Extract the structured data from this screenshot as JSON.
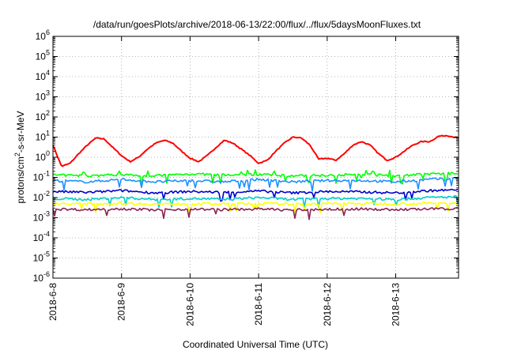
{
  "chart_data": {
    "type": "line",
    "title": "/data/run/goesPlots/archive/2018-06-13/22:00/flux/../flux/5daysMoonFluxes.txt",
    "xlabel": "Coordinated Universal Time (UTC)",
    "ylabel": "protons/cm²-s-sr-MeV",
    "y_scale": "log",
    "ylim": [
      1e-06,
      1000000.0
    ],
    "y_ticks": [
      {
        "value": 1e-06,
        "base": "10",
        "exp": "-6"
      },
      {
        "value": 1e-05,
        "base": "10",
        "exp": "-5"
      },
      {
        "value": 0.0001,
        "base": "10",
        "exp": "-4"
      },
      {
        "value": 0.001,
        "base": "10",
        "exp": "-3"
      },
      {
        "value": 0.01,
        "base": "10",
        "exp": "-2"
      },
      {
        "value": 0.1,
        "base": "10",
        "exp": "-1"
      },
      {
        "value": 1,
        "base": "10",
        "exp": "0"
      },
      {
        "value": 10.0,
        "base": "10",
        "exp": "1"
      },
      {
        "value": 100.0,
        "base": "10",
        "exp": "2"
      },
      {
        "value": 1000.0,
        "base": "10",
        "exp": "3"
      },
      {
        "value": 10000.0,
        "base": "10",
        "exp": "4"
      },
      {
        "value": 100000.0,
        "base": "10",
        "exp": "5"
      },
      {
        "value": 1000000.0,
        "base": "10",
        "exp": "6"
      }
    ],
    "xlim": [
      "2018-06-08T00:00",
      "2018-06-13T22:00"
    ],
    "x_ticks": [
      "2018-6-8",
      "2018-6-9",
      "2018-6-10",
      "2018-6-11",
      "2018-6-12",
      "2018-6-13"
    ],
    "x_tick_dates": [
      "2018-06-08",
      "2018-06-09",
      "2018-06-10",
      "2018-06-11",
      "2018-06-12",
      "2018-06-13"
    ],
    "grid": true,
    "legend": "none",
    "series": [
      {
        "color": "#ff0000",
        "x": [
          "2018-06-08T00:00",
          "2018-06-08T03:00",
          "2018-06-08T06:00",
          "2018-06-08T09:00",
          "2018-06-08T12:00",
          "2018-06-08T15:00",
          "2018-06-08T18:00",
          "2018-06-08T21:00",
          "2018-06-09T00:00",
          "2018-06-09T03:00",
          "2018-06-09T06:00",
          "2018-06-09T09:00",
          "2018-06-09T12:00",
          "2018-06-09T15:00",
          "2018-06-09T18:00",
          "2018-06-09T21:00",
          "2018-06-10T00:00",
          "2018-06-10T03:00",
          "2018-06-10T06:00",
          "2018-06-10T09:00",
          "2018-06-10T12:00",
          "2018-06-10T15:00",
          "2018-06-10T18:00",
          "2018-06-10T21:00",
          "2018-06-11T00:00",
          "2018-06-11T03:00",
          "2018-06-11T06:00",
          "2018-06-11T09:00",
          "2018-06-11T12:00",
          "2018-06-11T15:00",
          "2018-06-11T18:00",
          "2018-06-11T21:00",
          "2018-06-12T00:00",
          "2018-06-12T03:00",
          "2018-06-12T06:00",
          "2018-06-12T09:00",
          "2018-06-12T12:00",
          "2018-06-12T15:00",
          "2018-06-12T18:00",
          "2018-06-12T21:00",
          "2018-06-13T00:00",
          "2018-06-13T03:00",
          "2018-06-13T06:00",
          "2018-06-13T09:00",
          "2018-06-13T12:00",
          "2018-06-13T15:00",
          "2018-06-13T18:00",
          "2018-06-13T22:00"
        ],
        "y": [
          4,
          0.35,
          0.5,
          1.5,
          4,
          9,
          8,
          3,
          1.2,
          0.6,
          1.0,
          2.5,
          5,
          7,
          5,
          2,
          0.9,
          0.6,
          1.2,
          3,
          7,
          5,
          2.5,
          1.2,
          0.5,
          0.7,
          2,
          5,
          10,
          9,
          4,
          0.8,
          0.9,
          0.7,
          1.5,
          4,
          6,
          4,
          1.5,
          0.7,
          1.0,
          2,
          4,
          6,
          6,
          11,
          12,
          9
        ]
      },
      {
        "color": "#00ff00",
        "x": [
          "2018-06-08T00:00",
          "2018-06-08T12:00",
          "2018-06-09T00:00",
          "2018-06-09T12:00",
          "2018-06-10T00:00",
          "2018-06-10T12:00",
          "2018-06-11T00:00",
          "2018-06-11T12:00",
          "2018-06-12T00:00",
          "2018-06-12T12:00",
          "2018-06-13T00:00",
          "2018-06-13T12:00",
          "2018-06-13T22:00"
        ],
        "y": [
          0.13,
          0.12,
          0.14,
          0.12,
          0.15,
          0.13,
          0.14,
          0.12,
          0.13,
          0.14,
          0.12,
          0.15,
          0.16
        ]
      },
      {
        "color": "#1e90ff",
        "x": [
          "2018-06-08T00:00",
          "2018-06-08T12:00",
          "2018-06-09T00:00",
          "2018-06-09T12:00",
          "2018-06-10T00:00",
          "2018-06-10T12:00",
          "2018-06-11T00:00",
          "2018-06-11T12:00",
          "2018-06-12T00:00",
          "2018-06-12T12:00",
          "2018-06-13T00:00",
          "2018-06-13T12:00",
          "2018-06-13T22:00"
        ],
        "y": [
          0.07,
          0.06,
          0.08,
          0.06,
          0.07,
          0.06,
          0.08,
          0.06,
          0.07,
          0.07,
          0.06,
          0.08,
          0.09
        ]
      },
      {
        "color": "#0000cd",
        "x": [
          "2018-06-08T00:00",
          "2018-06-08T12:00",
          "2018-06-09T00:00",
          "2018-06-09T12:00",
          "2018-06-10T00:00",
          "2018-06-10T12:00",
          "2018-06-11T00:00",
          "2018-06-11T12:00",
          "2018-06-12T00:00",
          "2018-06-12T12:00",
          "2018-06-13T00:00",
          "2018-06-13T12:00",
          "2018-06-13T22:00"
        ],
        "y": [
          0.02,
          0.018,
          0.022,
          0.017,
          0.02,
          0.018,
          0.021,
          0.017,
          0.02,
          0.019,
          0.017,
          0.022,
          0.024
        ]
      },
      {
        "color": "#00cccc",
        "x": [
          "2018-06-08T00:00",
          "2018-06-08T12:00",
          "2018-06-09T00:00",
          "2018-06-09T12:00",
          "2018-06-10T00:00",
          "2018-06-10T12:00",
          "2018-06-11T00:00",
          "2018-06-11T12:00",
          "2018-06-12T00:00",
          "2018-06-12T12:00",
          "2018-06-13T00:00",
          "2018-06-13T12:00",
          "2018-06-13T22:00"
        ],
        "y": [
          0.009,
          0.008,
          0.01,
          0.008,
          0.009,
          0.008,
          0.01,
          0.008,
          0.009,
          0.009,
          0.008,
          0.01,
          0.011
        ]
      },
      {
        "color": "#ffff00",
        "x": [
          "2018-06-08T00:00",
          "2018-06-08T12:00",
          "2018-06-09T00:00",
          "2018-06-09T12:00",
          "2018-06-10T00:00",
          "2018-06-10T12:00",
          "2018-06-11T00:00",
          "2018-06-11T12:00",
          "2018-06-12T00:00",
          "2018-06-12T12:00",
          "2018-06-13T00:00",
          "2018-06-13T12:00",
          "2018-06-13T22:00"
        ],
        "y": [
          0.005,
          0.0048,
          0.0052,
          0.0047,
          0.005,
          0.0048,
          0.0051,
          0.0047,
          0.005,
          0.005,
          0.0048,
          0.0052,
          0.0053
        ]
      },
      {
        "color": "#8b2252",
        "x": [
          "2018-06-08T00:00",
          "2018-06-08T12:00",
          "2018-06-09T00:00",
          "2018-06-09T12:00",
          "2018-06-10T00:00",
          "2018-06-10T12:00",
          "2018-06-11T00:00",
          "2018-06-11T12:00",
          "2018-06-12T00:00",
          "2018-06-12T12:00",
          "2018-06-13T00:00",
          "2018-06-13T12:00",
          "2018-06-13T22:00"
        ],
        "y": [
          0.0027,
          0.0025,
          0.0028,
          0.0024,
          0.0027,
          0.0025,
          0.0027,
          0.0024,
          0.0026,
          0.0027,
          0.0025,
          0.0027,
          0.0028
        ]
      }
    ]
  }
}
